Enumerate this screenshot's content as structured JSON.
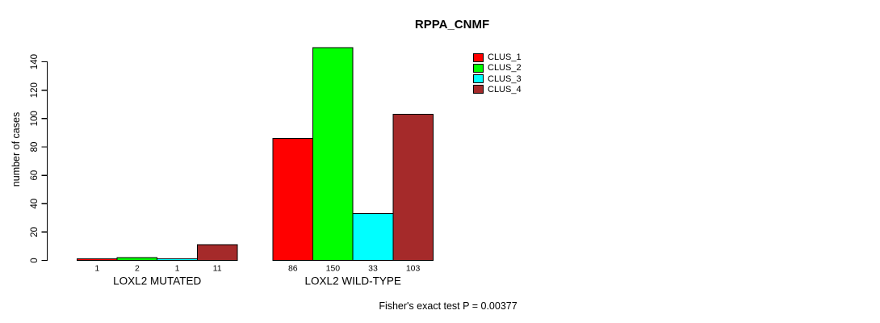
{
  "chart_data": {
    "type": "bar",
    "title": "RPPA_CNMF",
    "ylabel": "number of cases",
    "xlabel": "",
    "categories": [
      "LOXL2 MUTATED",
      "LOXL2 WILD-TYPE"
    ],
    "series": [
      {
        "name": "CLUS_1",
        "color": "#FF0000",
        "values": [
          1,
          86
        ]
      },
      {
        "name": "CLUS_2",
        "color": "#00FF00",
        "values": [
          2,
          150
        ]
      },
      {
        "name": "CLUS_3",
        "color": "#00FFFF",
        "values": [
          1,
          33
        ]
      },
      {
        "name": "CLUS_4",
        "color": "#A52A2A",
        "values": [
          11,
          103
        ]
      }
    ],
    "bar_value_labels_shown": true,
    "yticks": [
      0,
      20,
      40,
      60,
      80,
      100,
      120,
      140
    ],
    "ylim": [
      0,
      150
    ],
    "grid": "off",
    "legend_position": "top-right",
    "annotation": "Fisher's exact test P = 0.00377"
  },
  "colors": {
    "background": "#FFFFFF",
    "axis": "#000000",
    "text": "#000000",
    "bar_border": "#000000"
  }
}
